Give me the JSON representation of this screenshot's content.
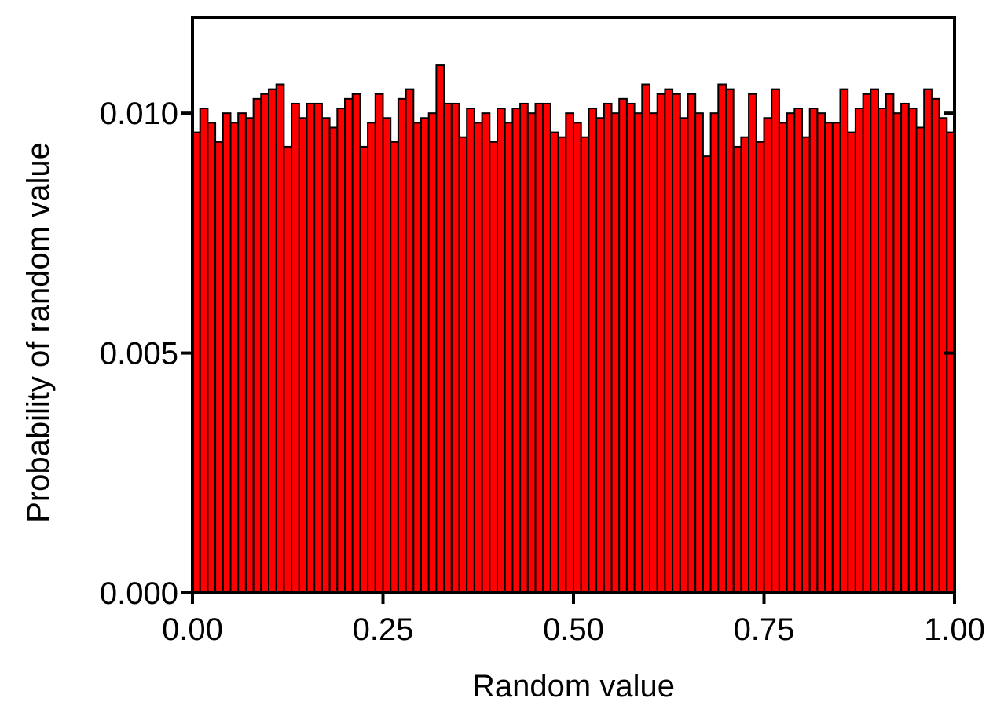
{
  "chart_data": {
    "type": "bar",
    "title": "",
    "xlabel": "Random value",
    "ylabel": "Probability of random value",
    "xlim": [
      0,
      1
    ],
    "ylim": [
      0,
      0.012
    ],
    "x_ticks": [
      "0.00",
      "0.25",
      "0.50",
      "0.75",
      "1.00"
    ],
    "x_tick_values": [
      0,
      0.25,
      0.5,
      0.75,
      1.0
    ],
    "y_ticks": [
      "0.000",
      "0.005",
      "0.010"
    ],
    "y_tick_values": [
      0,
      0.005,
      0.01
    ],
    "grid": false,
    "bin_width": 0.01,
    "bar_color": "#ff0000",
    "edge_color": "#000000",
    "values": [
      0.0096,
      0.0101,
      0.0098,
      0.0094,
      0.01,
      0.0098,
      0.01,
      0.0099,
      0.0103,
      0.0104,
      0.0105,
      0.0106,
      0.0093,
      0.0102,
      0.0099,
      0.0102,
      0.0102,
      0.0099,
      0.0097,
      0.0101,
      0.0103,
      0.0104,
      0.0093,
      0.0098,
      0.0104,
      0.0099,
      0.0094,
      0.0103,
      0.0105,
      0.0098,
      0.0099,
      0.01,
      0.011,
      0.0102,
      0.0102,
      0.0095,
      0.0101,
      0.0098,
      0.01,
      0.0094,
      0.0101,
      0.0098,
      0.0101,
      0.0102,
      0.01,
      0.0102,
      0.0102,
      0.0096,
      0.0095,
      0.01,
      0.0098,
      0.0095,
      0.0101,
      0.0099,
      0.0102,
      0.01,
      0.0103,
      0.0102,
      0.01,
      0.0106,
      0.01,
      0.0104,
      0.0105,
      0.0104,
      0.0099,
      0.0104,
      0.01,
      0.0091,
      0.01,
      0.0106,
      0.0105,
      0.0093,
      0.0095,
      0.0104,
      0.0094,
      0.0099,
      0.0105,
      0.0098,
      0.01,
      0.0101,
      0.0095,
      0.0101,
      0.01,
      0.0098,
      0.0098,
      0.0105,
      0.0096,
      0.0101,
      0.0104,
      0.0105,
      0.0101,
      0.0104,
      0.01,
      0.0102,
      0.0101,
      0.0097,
      0.0105,
      0.0103,
      0.0099,
      0.0096
    ]
  }
}
